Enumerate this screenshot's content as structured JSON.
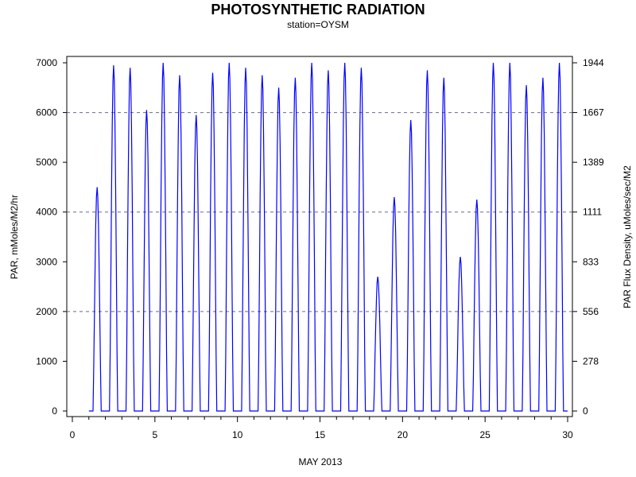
{
  "chart_data": {
    "type": "line",
    "title": "PHOTOSYNTHETIC RADIATION",
    "subtitle": "station=OYSM",
    "xlabel": "MAY 2013",
    "ylabel": "PAR, mMoles/M2/hr",
    "y2label": "PAR Flux Density, uMoles/sec/M2",
    "xlim": [
      0,
      30
    ],
    "ylim": [
      0,
      7000
    ],
    "x_ticks": [
      0,
      5,
      10,
      15,
      20,
      25,
      30
    ],
    "x_tick_labels": [
      "0",
      "5",
      "10",
      "15",
      "20",
      "25",
      "30"
    ],
    "y_ticks": [
      0,
      1000,
      2000,
      3000,
      4000,
      5000,
      6000,
      7000
    ],
    "y_tick_labels": [
      "0",
      "1000",
      "2000",
      "3000",
      "4000",
      "5000",
      "6000",
      "7000"
    ],
    "y2_ticks": [
      0,
      1000,
      2000,
      3000,
      4000,
      5000,
      6000,
      7000
    ],
    "y2_tick_labels": [
      "0",
      "278",
      "556",
      "833",
      "1111",
      "1389",
      "1667",
      "1944"
    ],
    "grid": "horizontal dashed at 2000, 4000, 6000",
    "line_color": "#0000ff",
    "daily_peaks": [
      {
        "day": 1,
        "peak": 4500
      },
      {
        "day": 2,
        "peak": 6950
      },
      {
        "day": 3,
        "peak": 6900
      },
      {
        "day": 4,
        "peak": 6050
      },
      {
        "day": 5,
        "peak": 7000
      },
      {
        "day": 6,
        "peak": 6750
      },
      {
        "day": 7,
        "peak": 5950
      },
      {
        "day": 8,
        "peak": 6800
      },
      {
        "day": 9,
        "peak": 7000
      },
      {
        "day": 10,
        "peak": 6900
      },
      {
        "day": 11,
        "peak": 6750
      },
      {
        "day": 12,
        "peak": 6500
      },
      {
        "day": 13,
        "peak": 6700
      },
      {
        "day": 14,
        "peak": 7000
      },
      {
        "day": 15,
        "peak": 6850
      },
      {
        "day": 16,
        "peak": 7000
      },
      {
        "day": 17,
        "peak": 6900
      },
      {
        "day": 18,
        "peak": 2700
      },
      {
        "day": 19,
        "peak": 4300
      },
      {
        "day": 20,
        "peak": 5850
      },
      {
        "day": 21,
        "peak": 6850
      },
      {
        "day": 22,
        "peak": 6700
      },
      {
        "day": 23,
        "peak": 3100
      },
      {
        "day": 24,
        "peak": 4250
      },
      {
        "day": 25,
        "peak": 7000
      },
      {
        "day": 26,
        "peak": 7000
      },
      {
        "day": 27,
        "peak": 6550
      },
      {
        "day": 28,
        "peak": 6700
      },
      {
        "day": 29,
        "peak": 7000
      }
    ]
  }
}
